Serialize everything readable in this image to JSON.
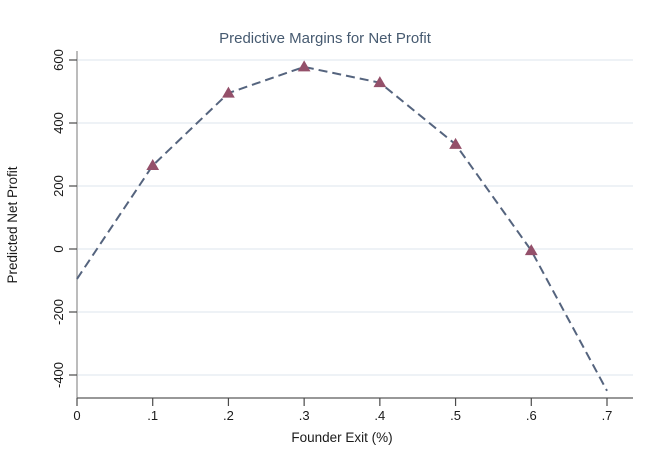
{
  "chart_data": {
    "type": "line",
    "title": "Predictive Margins for Net Profit",
    "xlabel": "Founder Exit (%)",
    "ylabel": "Predicted Net Profit",
    "line_style": "dashed",
    "marker_shape": "filled-triangle",
    "x": [
      0,
      0.1,
      0.2,
      0.3,
      0.4,
      0.5,
      0.6,
      0.7
    ],
    "values": [
      -95,
      265,
      495,
      578,
      528,
      332,
      -5,
      -450
    ],
    "marker_points": [
      0.1,
      0.2,
      0.3,
      0.4,
      0.5,
      0.6
    ],
    "xtick_values": [
      0,
      0.1,
      0.2,
      0.3,
      0.4,
      0.5,
      0.6,
      0.7
    ],
    "xtick_labels": [
      "0",
      ".1",
      ".2",
      ".3",
      ".4",
      ".5",
      ".6",
      ".7"
    ],
    "ytick_values": [
      600,
      400,
      200,
      0,
      -200,
      -400
    ],
    "ytick_labels": [
      "600",
      "400",
      "200",
      "0",
      "-200",
      "-400"
    ],
    "xlim": [
      0,
      0.735
    ],
    "ylim": [
      -473,
      629
    ],
    "grid": "horizontal-only",
    "legend": "none",
    "colors": {
      "line": "#55647e",
      "marker": "#94506a",
      "grid": "#e3eaf1",
      "axis_y": "#8f8f8f",
      "axis_x": "#5a5a5a",
      "tick": "#4a4a4a",
      "title": "#465a70",
      "text": "#1a1a1a"
    }
  }
}
